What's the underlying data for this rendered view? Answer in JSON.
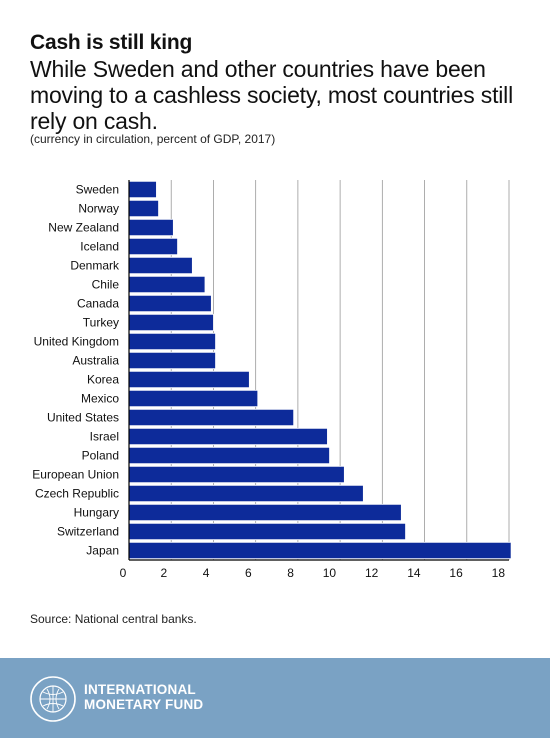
{
  "header": {
    "title": "Cash is still king",
    "subtitle": "While Sweden and other countries have been moving to a cashless society, most countries still rely on cash.",
    "note": "(currency in circulation, percent of GDP, 2017)"
  },
  "source": "Source: National central banks.",
  "footer": {
    "org_line1": "INTERNATIONAL",
    "org_line2": "MONETARY FUND",
    "seal_text": "INTERNATIONAL MONETARY FUND"
  },
  "colors": {
    "bar": "#0d2b9a",
    "grid": "#999999",
    "axis": "#000000",
    "footer_bg": "#7aa2c4"
  },
  "chart_data": {
    "type": "bar",
    "orientation": "horizontal",
    "categories": [
      "Sweden",
      "Norway",
      "New Zealand",
      "Iceland",
      "Denmark",
      "Chile",
      "Canada",
      "Turkey",
      "United Kingdom",
      "Australia",
      "Korea",
      "Mexico",
      "United States",
      "Israel",
      "Poland",
      "European Union",
      "Czech Republic",
      "Hungary",
      "Switzerland",
      "Japan"
    ],
    "values": [
      1.3,
      1.4,
      2.1,
      2.3,
      3.0,
      3.6,
      3.9,
      4.0,
      4.1,
      4.1,
      5.7,
      6.1,
      7.8,
      9.4,
      9.5,
      10.2,
      11.1,
      12.9,
      13.1,
      18.1
    ],
    "xlim": [
      0,
      18
    ],
    "xticks": [
      0,
      2,
      4,
      6,
      8,
      10,
      12,
      14,
      16,
      18
    ],
    "grid": true
  }
}
